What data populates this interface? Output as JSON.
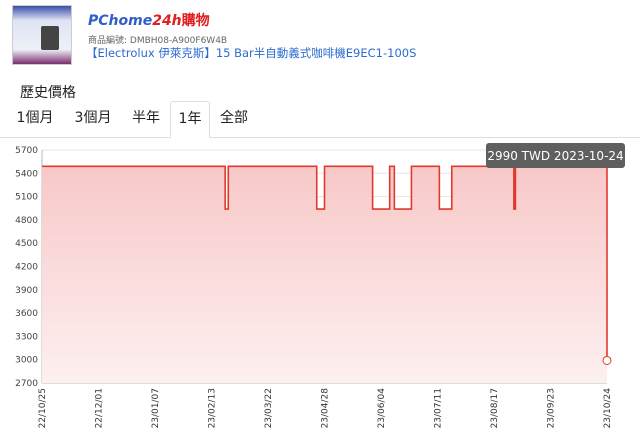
{
  "header": {
    "logo_text_1": "PChome",
    "logo_text_2": "24h",
    "logo_text_3": "購物",
    "product_code_label": "商品編號:",
    "product_code": "DMBH08-A900F6W4B",
    "product_title": "【Electrolux 伊萊克斯】15 Bar半自動義式咖啡機E9EC1-100S"
  },
  "section_title": "歷史價格",
  "tabs": [
    {
      "label": "1個月"
    },
    {
      "label": "3個月"
    },
    {
      "label": "半年"
    },
    {
      "label": "1年",
      "active": true
    },
    {
      "label": "全部"
    }
  ],
  "tooltip": "2990 TWD 2023-10-24",
  "colors": {
    "line": "#e03a2f",
    "fill": "#f9cfcf",
    "tooltip_bg": "#5f5f5f"
  },
  "chart_data": {
    "type": "area",
    "step": true,
    "x_ticks": [
      "22/10/25",
      "22/12/01",
      "23/01/07",
      "23/02/13",
      "23/03/22",
      "23/04/28",
      "23/06/04",
      "23/07/11",
      "23/08/17",
      "23/09/23",
      "23/10/24"
    ],
    "y_ticks": [
      2700,
      3000,
      3300,
      3600,
      3900,
      4200,
      4500,
      4800,
      5100,
      5400,
      5700
    ],
    "ylim": [
      2700,
      5700
    ],
    "xlim": [
      "2022-10-25",
      "2023-10-24"
    ],
    "grid": true,
    "series": [
      {
        "unit": "TWD",
        "points": [
          [
            "2022-10-25",
            5490
          ],
          [
            "2023-02-20",
            4940
          ],
          [
            "2023-02-22",
            5490
          ],
          [
            "2023-04-20",
            4940
          ],
          [
            "2023-04-25",
            5490
          ],
          [
            "2023-05-26",
            4940
          ],
          [
            "2023-06-06",
            5490
          ],
          [
            "2023-06-09",
            4940
          ],
          [
            "2023-06-20",
            5490
          ],
          [
            "2023-07-08",
            4940
          ],
          [
            "2023-07-16",
            5490
          ],
          [
            "2023-08-25",
            4940
          ],
          [
            "2023-08-26",
            5490
          ],
          [
            "2023-10-24",
            2990
          ]
        ]
      }
    ]
  }
}
